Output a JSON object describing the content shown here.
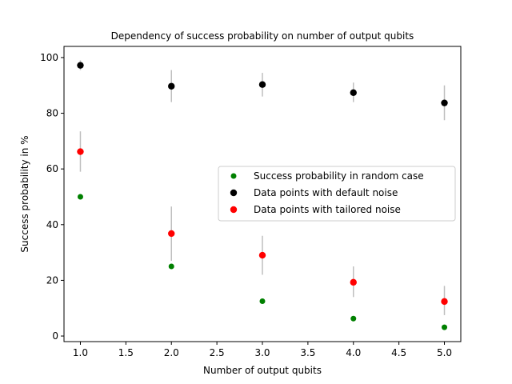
{
  "chart_data": {
    "type": "scatter",
    "title": "Dependency of success probability on number of output qubits",
    "xlabel": "Number of output qubits",
    "ylabel": "Success probability in %",
    "xlim": [
      0.82,
      5.18
    ],
    "ylim": [
      -2,
      104
    ],
    "xticks": [
      1.0,
      1.5,
      2.0,
      2.5,
      3.0,
      3.5,
      4.0,
      4.5,
      5.0
    ],
    "xtick_labels": [
      "1.0",
      "1.5",
      "2.0",
      "2.5",
      "3.0",
      "3.5",
      "4.0",
      "4.5",
      "5.0"
    ],
    "yticks": [
      0,
      20,
      40,
      60,
      80,
      100
    ],
    "ytick_labels": [
      "0",
      "20",
      "40",
      "60",
      "80",
      "100"
    ],
    "grid": false,
    "legend_position": "center-right",
    "errorbar_color": "#bfbfbf",
    "series": [
      {
        "name": "Success probability in random case",
        "color": "#008000",
        "x": [
          1,
          2,
          3,
          4,
          5
        ],
        "y": [
          50,
          25,
          12.5,
          6.25,
          3.125
        ]
      },
      {
        "name": "Data points with default noise",
        "color": "#000000",
        "x": [
          1,
          2,
          3,
          4,
          5
        ],
        "y": [
          97.2,
          89.7,
          90.3,
          87.4,
          83.7
        ],
        "err_low": [
          95.5,
          84.0,
          86.0,
          84.0,
          77.5
        ],
        "err_high": [
          99.0,
          95.5,
          94.5,
          91.0,
          90.0
        ]
      },
      {
        "name": "Data points with tailored noise",
        "color": "#ff0000",
        "x": [
          1,
          2,
          3,
          4,
          5
        ],
        "y": [
          66.2,
          36.8,
          29.0,
          19.3,
          12.4
        ],
        "err_low": [
          59.0,
          27.0,
          22.0,
          14.0,
          7.5
        ],
        "err_high": [
          73.5,
          46.5,
          36.0,
          25.0,
          18.0
        ]
      }
    ]
  }
}
